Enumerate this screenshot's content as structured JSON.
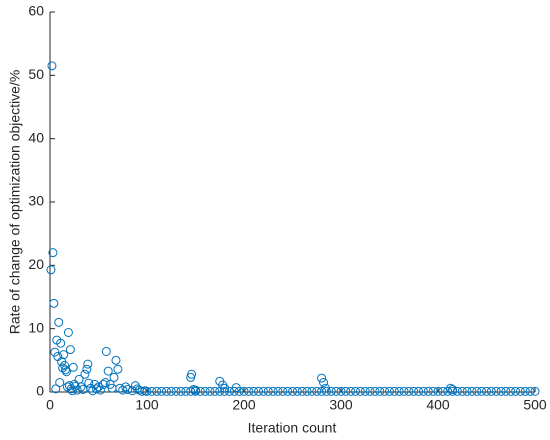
{
  "chart_data": {
    "type": "scatter",
    "xlabel": "Iteration count",
    "ylabel": "Rate of change of optimization objective/%",
    "color": "#0072bd",
    "xlim": [
      0,
      500
    ],
    "ylim": [
      0,
      60
    ],
    "xticks": [
      0,
      100,
      200,
      300,
      400,
      500
    ],
    "yticks": [
      0,
      10,
      20,
      30,
      40,
      50,
      60
    ],
    "x": [
      1,
      2,
      3,
      4,
      5,
      6,
      7,
      8,
      9,
      10,
      11,
      12,
      13,
      14,
      15,
      16,
      17,
      18,
      19,
      20,
      21,
      22,
      23,
      24,
      25,
      26,
      28,
      30,
      32,
      34,
      36,
      38,
      39,
      40,
      42,
      44,
      46,
      48,
      50,
      52,
      55,
      57,
      58,
      60,
      62,
      64,
      66,
      68,
      70,
      72,
      75,
      78,
      80,
      85,
      88,
      90,
      92,
      95,
      98,
      145,
      146,
      148,
      150,
      175,
      178,
      180,
      192,
      280,
      282,
      284,
      413,
      415,
      100,
      105,
      110,
      115,
      120,
      125,
      130,
      135,
      140,
      145,
      150,
      155,
      160,
      165,
      170,
      175,
      180,
      185,
      190,
      195,
      200,
      205,
      210,
      215,
      220,
      225,
      230,
      235,
      240,
      245,
      250,
      255,
      260,
      265,
      270,
      275,
      280,
      285,
      290,
      295,
      300,
      305,
      310,
      315,
      320,
      325,
      330,
      335,
      340,
      345,
      350,
      355,
      360,
      365,
      370,
      375,
      380,
      385,
      390,
      395,
      400,
      405,
      410,
      415,
      420,
      425,
      430,
      435,
      440,
      445,
      450,
      455,
      460,
      465,
      470,
      475,
      480,
      485,
      490,
      495,
      500
    ],
    "values": [
      19.3,
      51.5,
      22,
      14,
      6.3,
      0.5,
      8.2,
      5.6,
      11,
      1.5,
      7.7,
      4.8,
      3.8,
      5.9,
      4.2,
      3.5,
      3.2,
      0.8,
      9.4,
      1,
      6.7,
      0.5,
      0.2,
      3.9,
      1.2,
      0.9,
      0.3,
      2,
      0.8,
      0.4,
      2.8,
      3.6,
      4.4,
      1.4,
      0.6,
      0.2,
      1.2,
      0.5,
      0.8,
      0.3,
      1.2,
      1.5,
      6.4,
      3.3,
      1.2,
      0.6,
      2.3,
      5,
      3.6,
      0.6,
      0.3,
      0.8,
      0.4,
      0.2,
      1,
      0.5,
      0.3,
      0.1,
      0.2,
      2.3,
      2.8,
      0.4,
      0.3,
      1.7,
      1.1,
      0.6,
      0.7,
      2.2,
      1.5,
      0.6,
      0.6,
      0.4,
      0.1,
      0.1,
      0.1,
      0.1,
      0.1,
      0.1,
      0.1,
      0.1,
      0.1,
      0.1,
      0.1,
      0.1,
      0.1,
      0.1,
      0.1,
      0.1,
      0.1,
      0.1,
      0.1,
      0.1,
      0.1,
      0.1,
      0.1,
      0.1,
      0.1,
      0.1,
      0.1,
      0.1,
      0.1,
      0.1,
      0.1,
      0.1,
      0.1,
      0.1,
      0.1,
      0.1,
      0.1,
      0.1,
      0.1,
      0.1,
      0.1,
      0.1,
      0.1,
      0.1,
      0.1,
      0.1,
      0.1,
      0.1,
      0.1,
      0.1,
      0.1,
      0.1,
      0.1,
      0.1,
      0.1,
      0.1,
      0.1,
      0.1,
      0.1,
      0.1,
      0.1,
      0.1,
      0.1,
      0.1,
      0.1,
      0.1,
      0.1,
      0.1,
      0.1,
      0.1,
      0.1,
      0.1,
      0.1,
      0.1,
      0.1,
      0.1,
      0.1,
      0.1,
      0.1,
      0.1,
      0.1
    ]
  }
}
